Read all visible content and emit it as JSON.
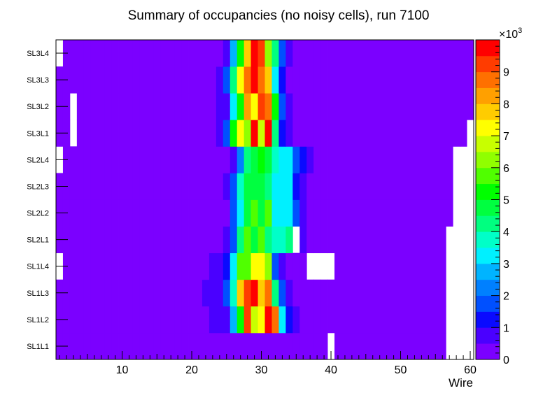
{
  "chart_data": {
    "type": "heatmap",
    "title": "Summary of occupancies (no noisy cells), run 7100",
    "xlabel": "Wire",
    "ylabel": "",
    "x_range": [
      0.5,
      60.5
    ],
    "x_ticks": [
      "10",
      "20",
      "30",
      "40",
      "50",
      "60"
    ],
    "x_tick_values": [
      10,
      20,
      30,
      40,
      50,
      60
    ],
    "rows": [
      "SL1L1",
      "SL1L2",
      "SL1L3",
      "SL1L4",
      "SL2L1",
      "SL2L2",
      "SL2L3",
      "SL2L4",
      "SL3L1",
      "SL3L2",
      "SL3L3",
      "SL3L4"
    ],
    "z_range": [
      0,
      10000
    ],
    "z_ticks": [
      "0",
      "1",
      "2",
      "3",
      "4",
      "5",
      "6",
      "7",
      "8",
      "9"
    ],
    "z_multiplier_base": "×10",
    "z_multiplier_exp": "3",
    "palette": [
      "#7b00ff",
      "#4a00ff",
      "#0a0aff",
      "#0050ff",
      "#0080ff",
      "#00b4ff",
      "#00f0ff",
      "#00ffc8",
      "#00ff80",
      "#00ff40",
      "#00ff00",
      "#50ff00",
      "#90ff00",
      "#c8ff00",
      "#ffff00",
      "#ffcc00",
      "#ffa000",
      "#ff7000",
      "#ff3c00",
      "#ff0000"
    ],
    "cells": [
      {
        "row": "SL1L1",
        "empty": [
          40,
          57,
          58,
          59,
          60
        ],
        "values": {
          "27": 150,
          "28": 150,
          "29": 150,
          "30": 150
        }
      },
      {
        "row": "SL1L2",
        "empty": [
          57,
          58,
          59,
          60
        ],
        "values": {
          "9": 300,
          "23": 600,
          "24": 600,
          "25": 800,
          "26": 2500,
          "27": 5000,
          "28": 9200,
          "29": 6500,
          "30": 7000,
          "31": 9800,
          "32": 8500,
          "33": 3000,
          "34": 1000,
          "35": 900
        }
      },
      {
        "row": "SL1L3",
        "empty": [
          57,
          58,
          59,
          60
        ],
        "values": {
          "22": 600,
          "23": 600,
          "24": 600,
          "25": 1500,
          "26": 3500,
          "27": 7500,
          "28": 9000,
          "29": 9800,
          "30": 7500,
          "31": 8800,
          "32": 4000,
          "33": 1500,
          "34": 800
        }
      },
      {
        "row": "SL1L4",
        "empty": [
          1,
          37,
          38,
          39,
          40,
          57,
          58,
          59,
          60
        ],
        "values": {
          "23": 600,
          "24": 600,
          "25": 1000,
          "26": 3000,
          "27": 5500,
          "28": 5500,
          "29": 7300,
          "30": 7300,
          "31": 6000,
          "32": 1800,
          "33": 900
        }
      },
      {
        "row": "SL2L1",
        "empty": [
          35,
          57,
          58,
          59,
          60
        ],
        "values": {
          "25": 800,
          "26": 1800,
          "27": 4000,
          "28": 5500,
          "29": 4800,
          "30": 5800,
          "31": 4200,
          "32": 3500,
          "33": 3500,
          "34": 4200,
          "36": 900
        }
      },
      {
        "row": "SL2L2",
        "empty": [
          58,
          59,
          60
        ],
        "values": {
          "26": 1500,
          "27": 3000,
          "28": 4500,
          "29": 5500,
          "30": 4800,
          "31": 5500,
          "32": 3200,
          "33": 3200,
          "34": 3200,
          "35": 1500,
          "36": 900
        }
      },
      {
        "row": "SL2L3",
        "empty": [
          58,
          59,
          60
        ],
        "values": {
          "25": 800,
          "26": 1800,
          "27": 3500,
          "28": 4800,
          "29": 4500,
          "30": 4500,
          "31": 4000,
          "32": 3300,
          "33": 3300,
          "34": 3300,
          "35": 1000,
          "36": 900
        }
      },
      {
        "row": "SL2L4",
        "empty": [
          1,
          58,
          59,
          60
        ],
        "values": {
          "26": 800,
          "27": 2000,
          "28": 4000,
          "29": 4500,
          "30": 5000,
          "31": 4500,
          "32": 3800,
          "33": 3300,
          "34": 3300,
          "35": 1500,
          "36": 1000,
          "37": 900
        }
      },
      {
        "row": "SL3L1",
        "empty": [
          3,
          60
        ],
        "values": {
          "24": 800,
          "25": 1800,
          "26": 5000,
          "27": 7000,
          "28": 6200,
          "29": 9500,
          "30": 6500,
          "31": 9800,
          "32": 4000,
          "33": 1000,
          "34": 900
        }
      },
      {
        "row": "SL3L2",
        "empty": [
          3
        ],
        "values": {
          "24": 600,
          "25": 700,
          "26": 3000,
          "27": 5000,
          "28": 8000,
          "29": 7000,
          "30": 9000,
          "31": 8500,
          "32": 5000,
          "33": 1500,
          "34": 900
        }
      },
      {
        "row": "SL3L3",
        "empty": [],
        "values": {
          "24": 600,
          "25": 1500,
          "26": 4000,
          "27": 7000,
          "28": 8500,
          "29": 9800,
          "30": 8500,
          "31": 7500,
          "32": 3000,
          "33": 1000
        }
      },
      {
        "row": "SL3L4",
        "empty": [
          1
        ],
        "values": {
          "25": 800,
          "26": 2500,
          "27": 5000,
          "28": 7500,
          "29": 9800,
          "30": 9000,
          "31": 6000,
          "32": 4000,
          "33": 1500,
          "34": 900
        }
      }
    ],
    "background_value": 250
  }
}
